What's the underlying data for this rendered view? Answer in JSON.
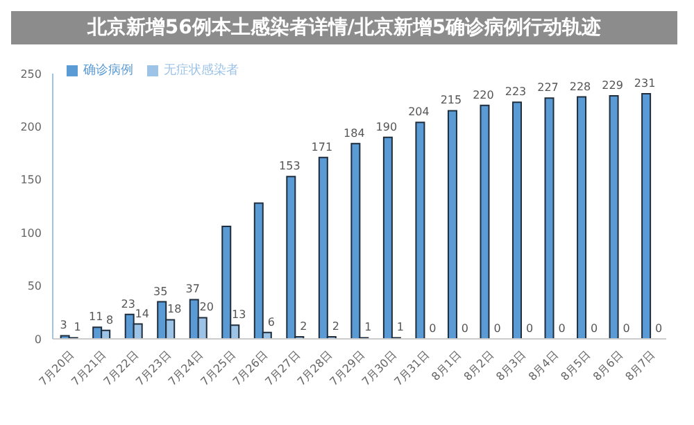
{
  "chart_data": {
    "type": "bar",
    "title": "北京新增56例本土感染者详情/北京新增5确诊病例行动轨迹",
    "categories": [
      "7月20日",
      "7月21日",
      "7月22日",
      "7月23日",
      "7月24日",
      "7月25日",
      "7月26日",
      "7月27日",
      "7月28日",
      "7月29日",
      "7月30日",
      "7月31日",
      "8月1日",
      "8月2日",
      "8月3日",
      "8月4日",
      "8月5日",
      "8月6日",
      "8月7日"
    ],
    "series": [
      {
        "name": "确诊病例",
        "color": "#5b9bd5",
        "values": [
          3,
          11,
          23,
          35,
          37,
          106,
          128,
          153,
          171,
          184,
          190,
          204,
          215,
          220,
          223,
          227,
          228,
          229,
          231
        ],
        "value_labels": [
          "3",
          "11",
          "23",
          "35",
          "37",
          null,
          null,
          "153",
          "171",
          "184",
          "190",
          "204",
          "215",
          "220",
          "223",
          "227",
          "228",
          "229",
          "231"
        ]
      },
      {
        "name": "无症状感染者",
        "color": "#9dc3e6",
        "values": [
          1,
          8,
          14,
          18,
          20,
          13,
          6,
          2,
          2,
          1,
          1,
          0,
          0,
          0,
          0,
          0,
          0,
          0,
          0
        ],
        "value_labels": [
          "1",
          "8",
          "14",
          "18",
          "20",
          "13",
          "6",
          "2",
          "2",
          "1",
          "1",
          "0",
          "0",
          "0",
          "0",
          "0",
          "0",
          "0",
          "0"
        ]
      }
    ],
    "ylim": [
      0,
      250
    ],
    "yticks": [
      0,
      50,
      100,
      150,
      200,
      250
    ],
    "grid": false,
    "legend": "top left"
  }
}
